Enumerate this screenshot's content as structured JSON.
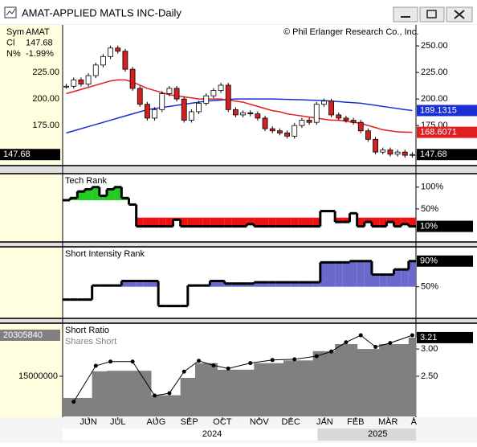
{
  "window": {
    "title": "AMAT-APPLIED MATLS INC-Daily",
    "copyright": "© Phil Erlanger Research Co., Inc.",
    "info": [
      {
        "label": "Sym",
        "value": "AMAT"
      },
      {
        "label": "Cl",
        "value": "147.68"
      },
      {
        "label": "N%",
        "value": "-1.99%"
      }
    ]
  },
  "x_axis": {
    "xlim": [
      -0.5,
      47.5
    ],
    "xticks": [
      {
        "value": 3,
        "label": "JUN"
      },
      {
        "value": 7,
        "label": "JUL"
      },
      {
        "value": 12.2,
        "label": "AUG"
      },
      {
        "value": 16.7,
        "label": "SEP"
      },
      {
        "value": 21.2,
        "label": "OCT"
      },
      {
        "value": 26.2,
        "label": "NOV"
      },
      {
        "value": 30.5,
        "label": "DEC"
      },
      {
        "value": 35.1,
        "label": "JAN"
      },
      {
        "value": 39.3,
        "label": "FEB"
      },
      {
        "value": 43.7,
        "label": "MAR"
      },
      {
        "value": 47.2,
        "label": "A"
      }
    ],
    "years": [
      {
        "value": 19.8,
        "label": "2024"
      },
      {
        "value": 42.3,
        "label": "2025"
      }
    ]
  },
  "chart_data": [
    {
      "type": "candlestick",
      "up_color": "#ffffff",
      "down_color": "#d42020",
      "values": [
        212,
        218,
        214,
        222,
        232,
        240,
        248,
        245,
        228,
        210,
        195,
        182,
        190,
        205,
        210,
        200,
        180,
        188,
        196,
        203,
        208,
        213,
        190,
        185,
        187,
        186,
        182,
        172,
        170,
        168,
        165,
        175,
        180,
        178,
        195,
        198,
        185,
        182,
        180,
        178,
        170,
        162,
        150,
        152,
        148,
        150,
        147,
        147.68
      ],
      "ylim": [
        138,
        269
      ],
      "yticks": [
        {
          "value": 250,
          "label": "250.00"
        },
        {
          "value": 225,
          "label": "225.00"
        },
        {
          "value": 200,
          "label": "200.00"
        },
        {
          "value": 175,
          "label": "175.00"
        }
      ],
      "series": [
        {
          "color": "#1a2fd6",
          "values": [
            168,
            170,
            172,
            174,
            176,
            178,
            180,
            182,
            184,
            186,
            188,
            190,
            191,
            192,
            193,
            194,
            195,
            196,
            197,
            198,
            198.5,
            199,
            199.5,
            200,
            200,
            200,
            200,
            200,
            200,
            199.8,
            199.6,
            199.4,
            199.2,
            199,
            198.8,
            198.5,
            198,
            197.5,
            197,
            196.5,
            196,
            195,
            194,
            193,
            192,
            191,
            190,
            189.1315
          ]
        },
        {
          "color": "#e02020",
          "values": [
            205,
            207,
            209,
            211,
            213,
            215,
            217,
            218,
            218,
            216,
            213,
            210,
            208,
            206,
            204,
            203,
            202,
            201,
            200,
            200,
            200,
            200,
            199,
            198,
            197,
            195,
            193,
            191,
            189,
            188,
            186,
            185,
            184,
            183,
            182,
            181,
            180,
            180,
            179,
            178,
            177,
            175,
            173,
            171,
            170,
            169,
            168.8,
            168.6071
          ]
        }
      ]
    },
    {
      "type": "band",
      "title": "Tech Rank",
      "upper_color": "#22cc22",
      "lower_color": "#ee1111",
      "bands": [
        70,
        30
      ],
      "values": [
        70,
        75,
        90,
        95,
        100,
        80,
        95,
        100,
        75,
        60,
        10,
        10,
        10,
        10,
        10,
        25,
        10,
        10,
        10,
        10,
        10,
        10,
        10,
        10,
        10,
        15,
        10,
        10,
        10,
        10,
        10,
        10,
        10,
        10,
        10,
        45,
        45,
        20,
        20,
        40,
        10,
        20,
        10,
        10,
        20,
        10,
        15,
        10
      ],
      "ylim": [
        -24,
        129
      ],
      "yticks": [
        {
          "value": 100,
          "label": "100%"
        },
        {
          "value": 50,
          "label": "50%"
        }
      ],
      "tag": {
        "value": 10,
        "label": "10%"
      }
    },
    {
      "type": "band",
      "title": "Short Intensity Rank",
      "upper_color": "#6a6acd",
      "lower_color": "#f0c020",
      "bands": [
        50,
        22
      ],
      "values": [
        30,
        30,
        30,
        30,
        52,
        52,
        52,
        52,
        59,
        59,
        59,
        59,
        59,
        20,
        20,
        20,
        20,
        52,
        52,
        52,
        59,
        59,
        55,
        55,
        55,
        55,
        57,
        57,
        57,
        57,
        57,
        57,
        57,
        57,
        57,
        88,
        88,
        88,
        88,
        90,
        90,
        90,
        69,
        69,
        69,
        77,
        77,
        90
      ],
      "ylim": [
        2,
        111
      ],
      "yticks": [
        {
          "value": 50,
          "label": "50%"
        }
      ],
      "tag": {
        "value": 90,
        "label": "90%"
      }
    },
    {
      "type": "step-area",
      "title": "Short Ratio",
      "color": "#808080",
      "values": [
        2.1,
        2.1,
        2.1,
        2.1,
        2.59,
        2.59,
        2.6,
        2.6,
        2.6,
        2.6,
        2.6,
        2.6,
        2.15,
        2.15,
        2.15,
        2.15,
        2.47,
        2.47,
        2.74,
        2.74,
        2.74,
        2.62,
        2.62,
        2.62,
        2.62,
        2.62,
        2.74,
        2.74,
        2.74,
        2.74,
        2.79,
        2.79,
        2.79,
        2.79,
        2.96,
        2.96,
        2.96,
        3.09,
        3.09,
        3.09,
        3.0,
        3.0,
        3.0,
        3.09,
        3.09,
        3.09,
        3.09,
        3.21
      ],
      "ylim": [
        1.76,
        3.46
      ],
      "yticks": [
        {
          "value": 3,
          "label": "3.00"
        },
        {
          "value": 2.5,
          "label": "2.50"
        }
      ],
      "y2lim": [
        9800000,
        21760000
      ],
      "y2ticks": [
        15000000
      ],
      "series": [
        {
          "name": "Shares Short",
          "axis": "y2",
          "color": "#000000",
          "x": [
            1,
            4,
            6,
            9,
            12,
            14,
            16,
            18,
            20,
            22,
            25,
            28,
            31,
            34,
            36,
            38,
            40,
            42,
            44,
            47
          ],
          "values": [
            11700000,
            16350000,
            16900000,
            16900000,
            12500000,
            12800000,
            15600000,
            17000000,
            16400000,
            16000000,
            16700000,
            17100000,
            17200000,
            17600000,
            18200000,
            19400000,
            20300000,
            18800000,
            19300000,
            20305840
          ]
        }
      ]
    }
  ]
}
